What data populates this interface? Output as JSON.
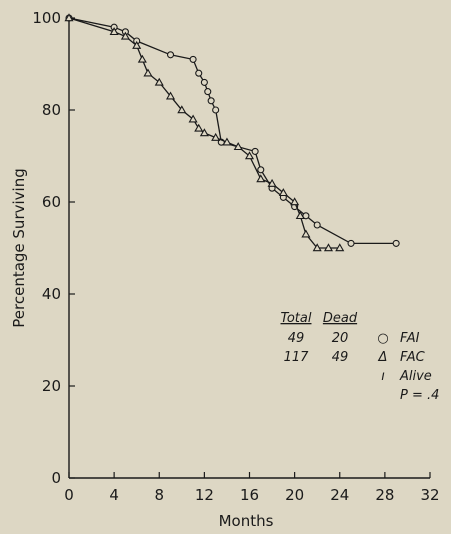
{
  "chart_data": {
    "type": "line",
    "xlabel": "Months",
    "ylabel": "Percentage Surviving",
    "xlim": [
      0,
      32
    ],
    "ylim": [
      0,
      100
    ],
    "x_ticks": [
      0,
      4,
      8,
      12,
      16,
      20,
      24,
      28,
      32
    ],
    "y_ticks": [
      0,
      20,
      40,
      60,
      80,
      100
    ],
    "grid": false,
    "series": [
      {
        "name": "FAI",
        "marker": "circle",
        "x": [
          0,
          4,
          5,
          6,
          9,
          11,
          11.5,
          12,
          12.3,
          12.6,
          13,
          13.5,
          16.5,
          17,
          18,
          19,
          20,
          21,
          22,
          25,
          29
        ],
        "y": [
          100,
          98,
          97,
          95,
          92,
          91,
          88,
          86,
          84,
          82,
          80,
          73,
          71,
          67,
          63,
          61,
          59,
          57,
          55,
          51,
          51
        ]
      },
      {
        "name": "FAC",
        "marker": "triangle",
        "x": [
          0,
          4,
          5,
          6,
          6.5,
          7,
          8,
          9,
          10,
          11,
          11.5,
          12,
          13,
          14,
          15,
          16,
          17,
          18,
          19,
          20,
          20.5,
          21,
          22,
          23,
          24
        ],
        "y": [
          100,
          97,
          96,
          94,
          91,
          88,
          86,
          83,
          80,
          78,
          76,
          75,
          74,
          73,
          72,
          70,
          65,
          64,
          62,
          60,
          57,
          53,
          50,
          50,
          50
        ]
      }
    ],
    "legend": {
      "position": "bottom-right",
      "headers": {
        "total": "Total",
        "dead": "Dead"
      },
      "rows": [
        {
          "total": "49",
          "dead": "20",
          "symbol": "○",
          "label": "FAI"
        },
        {
          "total": "117",
          "dead": "49",
          "symbol": "Δ",
          "label": "FAC"
        },
        {
          "total": "",
          "dead": "",
          "symbol": "ı",
          "label": "Alive"
        }
      ],
      "pvalue": "P = .4"
    }
  }
}
